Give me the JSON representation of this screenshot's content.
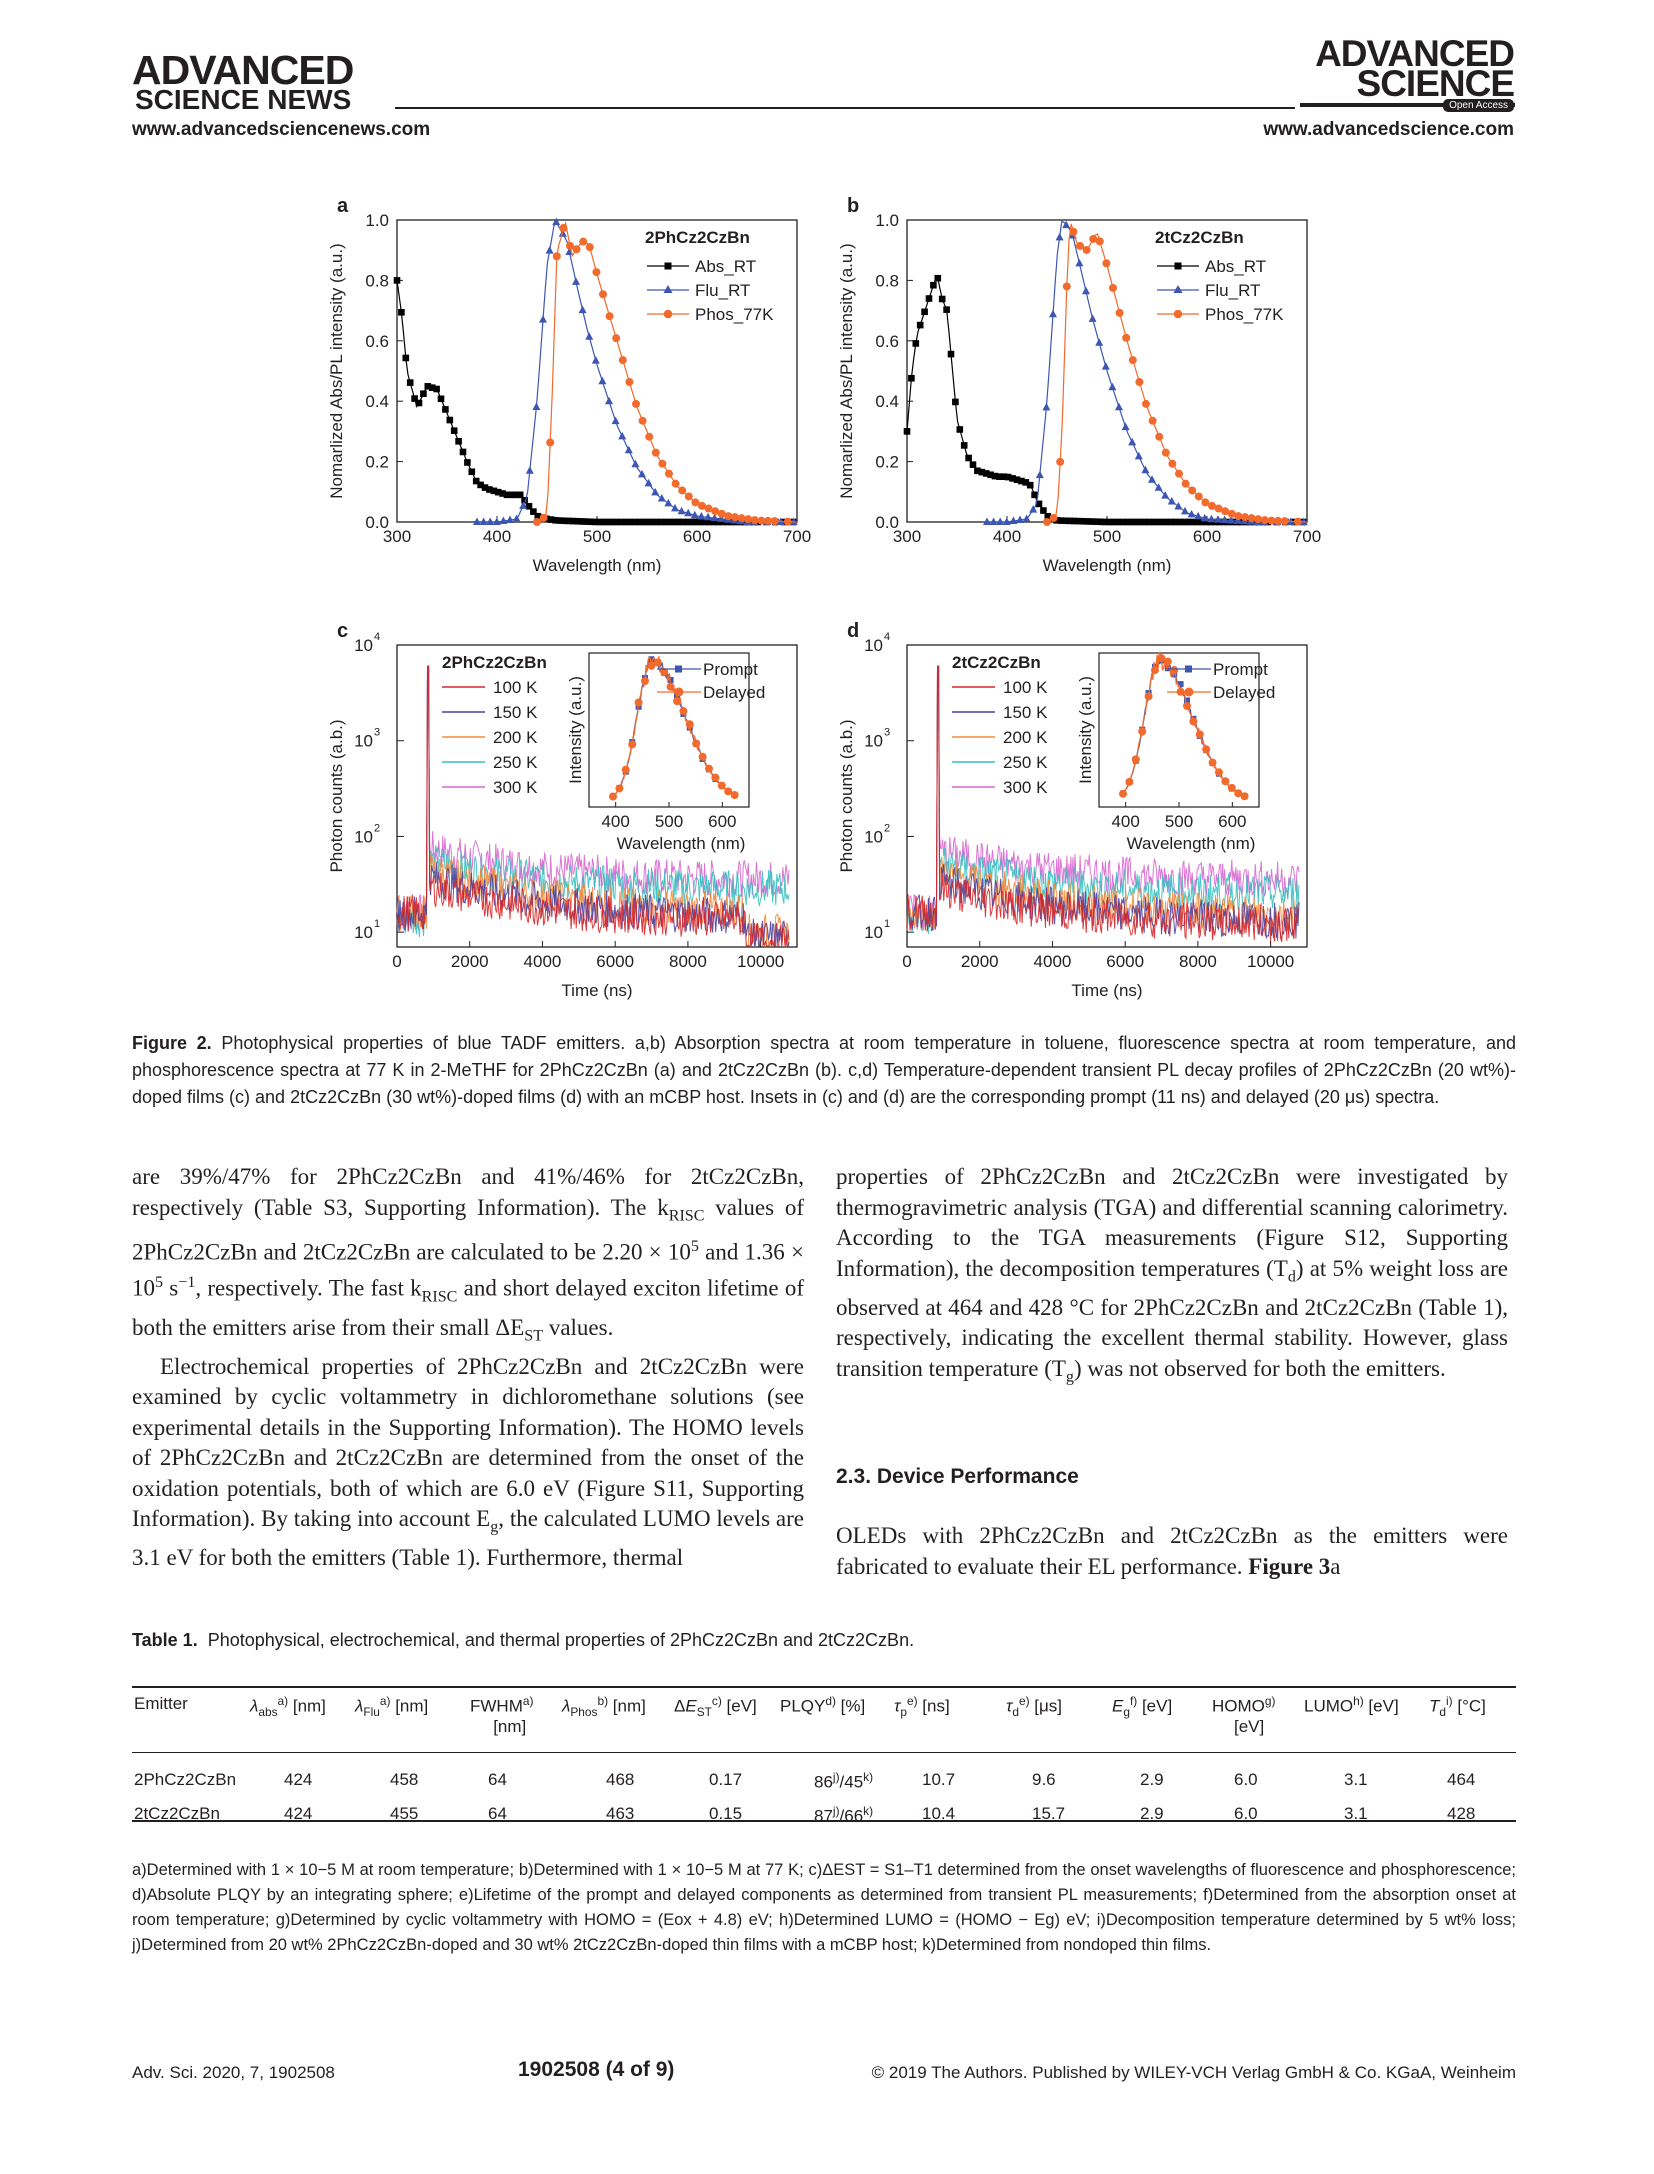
{
  "header": {
    "left_logo_line1": "ADVANCED",
    "left_logo_line2": "SCIENCE NEWS",
    "left_url": "www.advancedsciencenews.com",
    "right_logo_line1": "ADVANCED",
    "right_logo_line2": "SCIENCE",
    "right_badge": "Open Access",
    "right_url": "www.advancedscience.com"
  },
  "figure": {
    "panels": [
      {
        "letter": "a",
        "legend_title": "2PhCz2CzBn",
        "ylabel": "Nomarlized Abs/PL intensity (a.u.)",
        "xlabel": "Wavelength (nm)",
        "x_ticks": [
          "300",
          "400",
          "500",
          "600",
          "700"
        ],
        "y_ticks": [
          "0.0",
          "0.2",
          "0.4",
          "0.6",
          "0.8",
          "1.0"
        ],
        "legend": [
          "Abs_RT",
          "Flu_RT",
          "Phos_77K"
        ]
      },
      {
        "letter": "b",
        "legend_title": "2tCz2CzBn",
        "ylabel": "Nomarlized Abs/PL intensity (a.u.)",
        "xlabel": "Wavelength (nm)",
        "x_ticks": [
          "300",
          "400",
          "500",
          "600",
          "700"
        ],
        "y_ticks": [
          "0.0",
          "0.2",
          "0.4",
          "0.6",
          "0.8",
          "1.0"
        ],
        "legend": [
          "Abs_RT",
          "Flu_RT",
          "Phos_77K"
        ]
      },
      {
        "letter": "c",
        "legend_title": "2PhCz2CzBn",
        "ylabel": "Photon counts (a.b.)",
        "xlabel": "Time (ns)",
        "x_ticks": [
          "0",
          "2000",
          "4000",
          "6000",
          "8000",
          "10000"
        ],
        "y_ticks": [
          "10",
          "10",
          "10",
          "10"
        ],
        "y_exps": [
          "1",
          "2",
          "3",
          "4"
        ],
        "legend": [
          "100 K",
          "150 K",
          "200 K",
          "250 K",
          "300 K"
        ],
        "inset_ylabel": "Intensity (a.u.)",
        "inset_xlabel": "Wavelength (nm)",
        "inset_ticks": [
          "400",
          "500",
          "600"
        ],
        "inset_legend": [
          "Prompt",
          "Delayed"
        ]
      },
      {
        "letter": "d",
        "legend_title": "2tCz2CzBn",
        "ylabel": "Photon counts (a.b.)",
        "xlabel": "Time (ns)",
        "x_ticks": [
          "0",
          "2000",
          "4000",
          "6000",
          "8000",
          "10000"
        ],
        "y_ticks": [
          "10",
          "10",
          "10",
          "10"
        ],
        "y_exps": [
          "1",
          "2",
          "3",
          "4"
        ],
        "legend": [
          "100 K",
          "150 K",
          "200 K",
          "250 K",
          "300 K"
        ],
        "inset_ylabel": "Intensity (a.u.)",
        "inset_xlabel": "Wavelength (nm)",
        "inset_ticks": [
          "400",
          "500",
          "600"
        ],
        "inset_legend": [
          "Prompt",
          "Delayed"
        ]
      }
    ],
    "colors": {
      "abs": "#000000",
      "flu": "#3d56b3",
      "phos": "#f26a2c",
      "k100": "#d62728",
      "k150": "#4a3fa0",
      "k200": "#f28a3c",
      "k250": "#35c0c0",
      "k300": "#d966d0"
    }
  },
  "chart_data": [
    {
      "type": "line",
      "panel": "a",
      "xlim": [
        300,
        700
      ],
      "ylim": [
        0,
        1.0
      ],
      "series": [
        {
          "name": "Abs_RT",
          "x": [
            300,
            305,
            310,
            320,
            330,
            340,
            350,
            360,
            370,
            380,
            390,
            400,
            410,
            420,
            424,
            430,
            440,
            450,
            460,
            500,
            700
          ],
          "y": [
            0.8,
            0.68,
            0.5,
            0.38,
            0.45,
            0.44,
            0.36,
            0.28,
            0.2,
            0.13,
            0.11,
            0.1,
            0.09,
            0.09,
            0.09,
            0.06,
            0.02,
            0.01,
            0.005,
            0.0,
            0.0
          ]
        },
        {
          "name": "Flu_RT",
          "x": [
            380,
            400,
            420,
            430,
            440,
            450,
            458,
            470,
            480,
            490,
            500,
            520,
            540,
            560,
            580,
            600,
            650,
            700
          ],
          "y": [
            0,
            0,
            0.01,
            0.08,
            0.4,
            0.85,
            1.0,
            0.93,
            0.78,
            0.64,
            0.52,
            0.32,
            0.18,
            0.09,
            0.04,
            0.02,
            0.0,
            0.0
          ]
        },
        {
          "name": "Phos_77K",
          "x": [
            440,
            450,
            455,
            460,
            465,
            468,
            475,
            485,
            492,
            500,
            520,
            540,
            560,
            580,
            600,
            630,
            660,
            700
          ],
          "y": [
            0,
            0.02,
            0.4,
            0.9,
            0.95,
            1.0,
            0.88,
            0.93,
            0.92,
            0.82,
            0.6,
            0.38,
            0.22,
            0.12,
            0.06,
            0.02,
            0.005,
            0.0
          ]
        }
      ]
    },
    {
      "type": "line",
      "panel": "b",
      "xlim": [
        300,
        700
      ],
      "ylim": [
        0,
        1.0
      ],
      "series": [
        {
          "name": "Abs_RT",
          "x": [
            300,
            305,
            310,
            320,
            330,
            335,
            340,
            350,
            360,
            370,
            380,
            390,
            400,
            410,
            420,
            424,
            430,
            440,
            450,
            500,
            700
          ],
          "y": [
            0.3,
            0.5,
            0.62,
            0.72,
            0.82,
            0.74,
            0.7,
            0.34,
            0.22,
            0.17,
            0.16,
            0.15,
            0.15,
            0.14,
            0.13,
            0.12,
            0.07,
            0.02,
            0.005,
            0.0,
            0.0
          ]
        },
        {
          "name": "Flu_RT",
          "x": [
            380,
            400,
            420,
            430,
            440,
            450,
            455,
            465,
            475,
            485,
            500,
            520,
            540,
            560,
            580,
            600,
            650,
            700
          ],
          "y": [
            0,
            0,
            0.01,
            0.06,
            0.4,
            0.88,
            1.0,
            0.96,
            0.82,
            0.68,
            0.5,
            0.3,
            0.16,
            0.08,
            0.03,
            0.01,
            0.0,
            0.0
          ]
        },
        {
          "name": "Phos_77K",
          "x": [
            440,
            450,
            455,
            460,
            463,
            470,
            480,
            490,
            500,
            520,
            540,
            560,
            580,
            600,
            630,
            660,
            700
          ],
          "y": [
            0,
            0.02,
            0.3,
            0.8,
            1.0,
            0.92,
            0.9,
            0.96,
            0.85,
            0.6,
            0.38,
            0.22,
            0.12,
            0.06,
            0.02,
            0.005,
            0.0
          ]
        }
      ]
    },
    {
      "type": "line",
      "panel": "c",
      "y_scale": "log",
      "xlim": [
        0,
        11000
      ],
      "ylim": [
        7,
        10000
      ],
      "series": [
        {
          "name": "100 K",
          "level_after_pulse": [
            30,
            13
          ]
        },
        {
          "name": "150 K",
          "level_after_pulse": [
            38,
            14
          ]
        },
        {
          "name": "200 K",
          "level_after_pulse": [
            45,
            16
          ]
        },
        {
          "name": "250 K",
          "level_after_pulse": [
            55,
            28
          ]
        },
        {
          "name": "300 K",
          "level_after_pulse": [
            75,
            35
          ]
        }
      ],
      "inset": {
        "xlim": [
          350,
          650
        ],
        "series": [
          {
            "name": "Prompt",
            "peak": 468
          },
          {
            "name": "Delayed",
            "peak": 468
          }
        ]
      }
    },
    {
      "type": "line",
      "panel": "d",
      "y_scale": "log",
      "xlim": [
        0,
        11000
      ],
      "ylim": [
        7,
        10000
      ],
      "series": [
        {
          "name": "100 K",
          "level_after_pulse": [
            28,
            12
          ]
        },
        {
          "name": "150 K",
          "level_after_pulse": [
            34,
            13
          ]
        },
        {
          "name": "200 K",
          "level_after_pulse": [
            42,
            15
          ]
        },
        {
          "name": "250 K",
          "level_after_pulse": [
            52,
            25
          ]
        },
        {
          "name": "300 K",
          "level_after_pulse": [
            70,
            35
          ]
        }
      ],
      "inset": {
        "xlim": [
          350,
          650
        ],
        "series": [
          {
            "name": "Prompt",
            "peak": 463
          },
          {
            "name": "Delayed",
            "peak": 463
          }
        ]
      }
    }
  ],
  "caption": {
    "label": "Figure 2.",
    "text": "Photophysical properties of blue TADF emitters. a,b) Absorption spectra at room temperature in toluene, fluorescence spectra at room temperature, and phosphorescence spectra at 77 K in 2-MeTHF for 2PhCz2CzBn (a) and 2tCz2CzBn (b). c,d) Temperature-dependent transient PL decay profiles of 2PhCz2CzBn (20 wt%)-doped films (c) and 2tCz2CzBn (30 wt%)-doped films (d) with an mCBP host. Insets in (c) and (d) are the corresponding prompt (11 ns) and delayed (20 μs) spectra."
  },
  "body": {
    "left_p1": "are 39%/47% for 2PhCz2CzBn and 41%/46% for 2tCz2CzBn, respectively (Table S3, Supporting Information). The k",
    "left_p1_sub": "RISC",
    "left_p1b": " values of 2PhCz2CzBn and 2tCz2CzBn are calculated to be 2.20 × 10",
    "left_p1_sup1": "5",
    "left_p1c": " and 1.36 × 10",
    "left_p1_sup2": "5",
    "left_p1d": " s",
    "left_p1_sup3": "−1",
    "left_p1e": ", respectively. The fast k",
    "left_p1f": " and short delayed exciton lifetime of both the emitters arise from their small ΔE",
    "left_p1_sub2": "ST",
    "left_p1g": " values.",
    "left_p2a": "Electrochemical properties of 2PhCz2CzBn and 2tCz2CzBn were examined by cyclic voltammetry in dichloromethane solutions (see experimental details in the Supporting Information). The HOMO levels of 2PhCz2CzBn and 2tCz2CzBn are determined from the onset of the oxidation potentials, both of which are 6.0 eV (Figure S11, Supporting Information). By taking into account E",
    "left_p2_sub": "g",
    "left_p2b": ", the calculated LUMO levels are 3.1 eV for both the emitters (Table 1). Furthermore, thermal",
    "right_p1a": "properties of 2PhCz2CzBn and 2tCz2CzBn were investigated by thermogravimetric analysis (TGA) and differential scanning calorimetry. According to the TGA measurements (Figure S12, Supporting Information), the decomposition temperatures (T",
    "right_p1_sub1": "d",
    "right_p1b": ") at 5% weight loss are observed at 464 and 428 °C for 2PhCz2CzBn and 2tCz2CzBn (Table 1), respectively, indicating the excellent thermal stability. However, glass transition temperature (T",
    "right_p1_sub2": "g",
    "right_p1c": ") was not observed for both the emitters.",
    "section_title": "2.3. Device Performance",
    "right_p2a": "OLEDs with 2PhCz2CzBn and 2tCz2CzBn as the emitters were fabricated to evaluate their EL performance. ",
    "right_p2_bold": "Figure 3",
    "right_p2b": "a"
  },
  "table": {
    "label": "Table 1.",
    "title": "Photophysical, electrochemical, and thermal properties of 2PhCz2CzBn and 2tCz2CzBn.",
    "headers": [
      "Emitter",
      "λabs",
      "λFlu",
      "FWHM",
      "λPhos",
      "ΔEST",
      "PLQY",
      "τp",
      "τd",
      "Eg",
      "HOMO",
      "LUMO",
      "Td"
    ],
    "rows": [
      [
        "2PhCz2CzBn",
        "424",
        "458",
        "64",
        "468",
        "0.17",
        "86",
        "45",
        "10.7",
        "9.6",
        "2.9",
        "6.0",
        "3.1",
        "464"
      ],
      [
        "2tCz2CzBn",
        "424",
        "455",
        "64",
        "463",
        "0.15",
        "87",
        "66",
        "10.4",
        "15.7",
        "2.9",
        "6.0",
        "3.1",
        "428"
      ]
    ],
    "footnotes": "a)Determined with 1 × 10−5 M at room temperature; b)Determined with 1 × 10−5 M at 77 K; c)ΔEST = S1–T1 determined from the onset wavelengths of fluorescence and phosphorescence; d)Absolute PLQY by an integrating sphere; e)Lifetime of the prompt and delayed components as determined from transient PL measurements; f)Determined from the absorption onset at room temperature; g)Determined by cyclic voltammetry with HOMO = (Eox + 4.8) eV; h)Determined LUMO = (HOMO − Eg) eV; i)Decomposition temperature determined by 5 wt% loss; j)Determined from 20 wt% 2PhCz2CzBn-doped and 30 wt% 2tCz2CzBn-doped thin films with a mCBP host; k)Determined from nondoped thin films."
  },
  "footer": {
    "left": "Adv. Sci. 2020, 7, 1902508",
    "center": "1902508  (4 of 9)",
    "right": "© 2019 The Authors. Published by WILEY-VCH Verlag GmbH & Co. KGaA, Weinheim"
  }
}
